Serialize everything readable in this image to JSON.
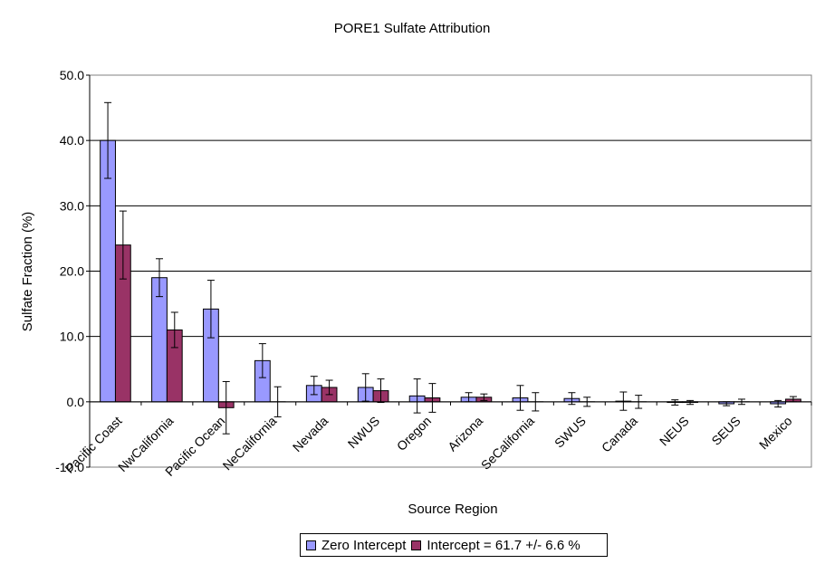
{
  "chart_data": {
    "type": "bar",
    "title": "PORE1 Sulfate Attribution",
    "xlabel": "Source Region",
    "ylabel": "Sulfate Fraction (%)",
    "ylim": [
      -10,
      50
    ],
    "yticks": [
      "-10.0",
      "0.0",
      "10.0",
      "20.0",
      "30.0",
      "40.0",
      "50.0"
    ],
    "grid": "horizontal",
    "legend_position": "bottom",
    "categories": [
      "Pacific Coast",
      "NwCalifornia",
      "Pacific Ocean",
      "NeCalifornia",
      "Nevada",
      "NWUS",
      "Oregon",
      "Arizona",
      "SeCalifornia",
      "SWUS",
      "Canada",
      "NEUS",
      "SEUS",
      "Mexico"
    ],
    "series": [
      {
        "name": "Zero Intercept",
        "color": "#9999ff",
        "values": [
          40.0,
          19.0,
          14.2,
          6.3,
          2.5,
          2.2,
          0.9,
          0.7,
          0.6,
          0.5,
          0.1,
          -0.1,
          -0.3,
          -0.3
        ],
        "errors": [
          5.8,
          2.9,
          4.4,
          2.6,
          1.4,
          2.1,
          2.6,
          0.7,
          1.9,
          0.9,
          1.4,
          0.4,
          0.3,
          0.5
        ]
      },
      {
        "name": "Intercept = 61.7 +/- 6.6 %",
        "color": "#993366",
        "values": [
          24.0,
          11.0,
          -0.9,
          0.0,
          2.2,
          1.7,
          0.6,
          0.7,
          0.0,
          0.0,
          0.0,
          -0.1,
          0.0,
          0.4
        ],
        "errors": [
          5.2,
          2.7,
          4.0,
          2.3,
          1.1,
          1.8,
          2.2,
          0.5,
          1.4,
          0.7,
          1.0,
          0.3,
          0.4,
          0.4
        ]
      }
    ]
  }
}
